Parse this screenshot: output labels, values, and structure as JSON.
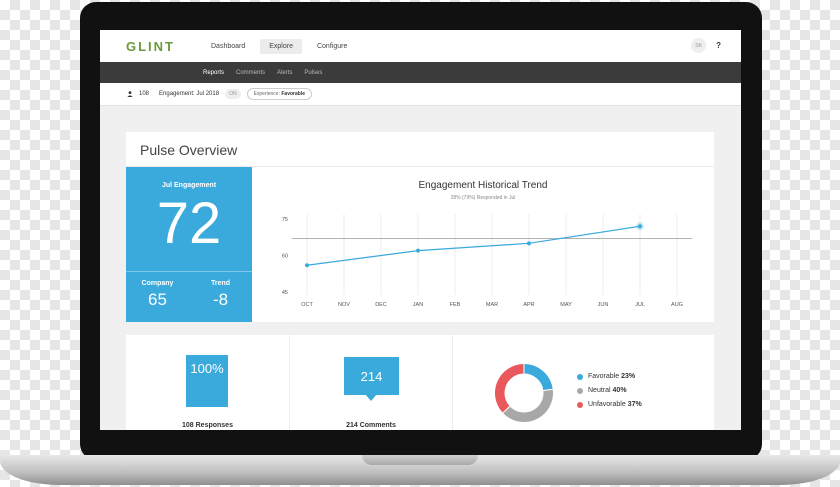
{
  "app": {
    "logo": "GLINT",
    "nav": [
      "Dashboard",
      "Explore",
      "Configure"
    ],
    "active_nav": "Explore",
    "avatar": "SK",
    "help": "?"
  },
  "subnav": [
    "Reports",
    "Comments",
    "Alerts",
    "Pulses"
  ],
  "filters": {
    "count": "108",
    "title": "Engagement: Jul 2018",
    "on": "ON",
    "pill_label": "Experience:",
    "pill_value": "Favorable"
  },
  "overview": {
    "title": "Pulse Overview",
    "kpi_label": "Jul Engagement",
    "kpi_value": "72",
    "company_label": "Company",
    "company_value": "65",
    "trend_label": "Trend",
    "trend_value": "-8"
  },
  "chart_data": {
    "type": "line",
    "title": "Engagement Historical Trend",
    "subtitle": "28% (79%) Responded in Jul",
    "categories": [
      "OCT",
      "NOV",
      "DEC",
      "JAN",
      "FEB",
      "MAR",
      "APR",
      "MAY",
      "JUN",
      "JUL",
      "AUG"
    ],
    "yticks": [
      75,
      60,
      45
    ],
    "ylim": [
      45,
      75
    ],
    "reference_line": 67,
    "series": [
      {
        "points": [
          {
            "x": "OCT",
            "y": 56
          },
          {
            "x": "JAN",
            "y": 62
          },
          {
            "x": "APR",
            "y": 65
          },
          {
            "x": "JUL",
            "y": 72
          }
        ]
      }
    ],
    "line_color": "#3aa9dc"
  },
  "stats": {
    "responses_value": "100%",
    "responses_label": "108 Responses",
    "comments_value": "214",
    "comments_label": "214 Comments"
  },
  "donut": {
    "segments": [
      {
        "label": "Favorable",
        "value": 23,
        "pct": "23%",
        "color": "#3aa9dc"
      },
      {
        "label": "Neutral",
        "value": 40,
        "pct": "40%",
        "color": "#a8a8a8"
      },
      {
        "label": "Unfavorable",
        "value": 37,
        "pct": "37%",
        "color": "#e9585b"
      }
    ]
  }
}
